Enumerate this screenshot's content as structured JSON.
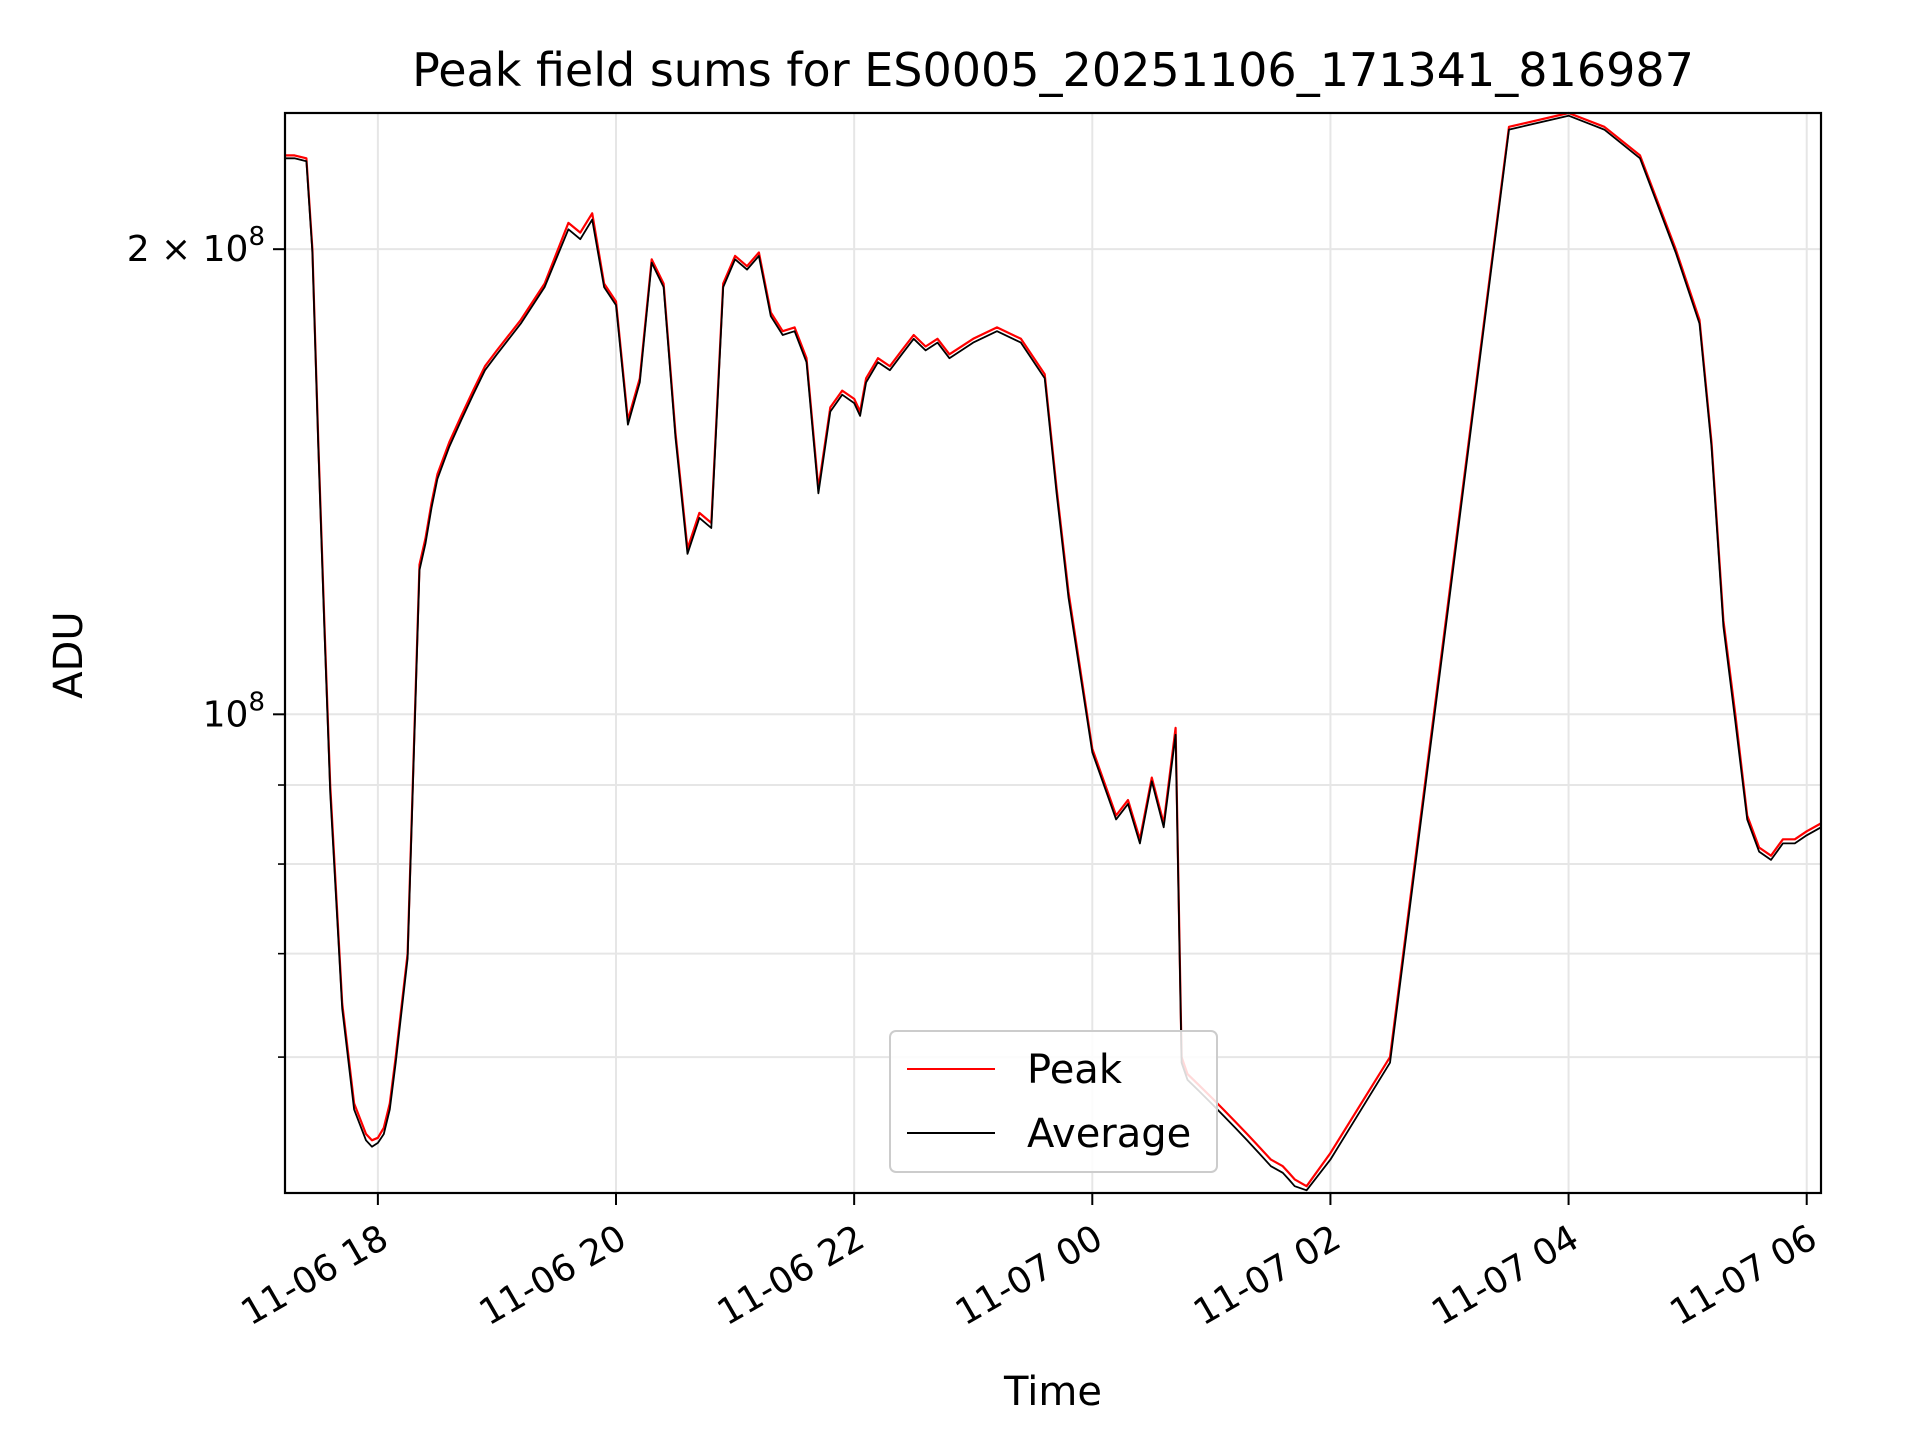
{
  "chart_data": {
    "type": "line",
    "title": "Peak field sums for ES0005_20251106_171341_816987",
    "xlabel": "Time",
    "ylabel": "ADU",
    "yscale": "log",
    "grid": true,
    "ylim": [
      49000000,
      245000000
    ],
    "xlim_hours": [
      17.22,
      30.12
    ],
    "x_unit": "hours since 2025-11-06 00:00",
    "x_ticks": [
      {
        "value": 18,
        "label": "11-06 18"
      },
      {
        "value": 20,
        "label": "11-06 20"
      },
      {
        "value": 22,
        "label": "11-06 22"
      },
      {
        "value": 24,
        "label": "11-07 00"
      },
      {
        "value": 26,
        "label": "11-07 02"
      },
      {
        "value": 28,
        "label": "11-07 04"
      },
      {
        "value": 30,
        "label": "11-07 06"
      }
    ],
    "y_major_ticks": [
      {
        "value": 100000000,
        "mantissa": "",
        "exponent": "8"
      },
      {
        "value": 200000000,
        "mantissa": "2 × ",
        "exponent": "8"
      }
    ],
    "y_minor_ticks": [
      60000000,
      70000000,
      80000000,
      90000000
    ],
    "legend_location": "bottom-center",
    "series": [
      {
        "name": "Peak",
        "color": "#ff0000",
        "x": [
          17.22,
          17.3,
          17.4,
          17.45,
          17.5,
          17.55,
          17.6,
          17.7,
          17.8,
          17.9,
          17.95,
          18.0,
          18.05,
          18.1,
          18.15,
          18.25,
          18.35,
          18.4,
          18.45,
          18.5,
          18.6,
          18.7,
          18.8,
          18.9,
          19.0,
          19.2,
          19.4,
          19.6,
          19.7,
          19.8,
          19.9,
          20.0,
          20.1,
          20.2,
          20.3,
          20.4,
          20.5,
          20.6,
          20.7,
          20.8,
          20.9,
          21.0,
          21.1,
          21.2,
          21.3,
          21.4,
          21.5,
          21.6,
          21.7,
          21.8,
          21.9,
          22.0,
          22.05,
          22.1,
          22.2,
          22.3,
          22.4,
          22.5,
          22.6,
          22.7,
          22.8,
          23.0,
          23.2,
          23.4,
          23.6,
          23.7,
          23.8,
          24.0,
          24.2,
          24.3,
          24.4,
          24.5,
          24.6,
          24.7,
          24.75,
          24.8,
          24.9,
          25.0,
          25.1,
          25.2,
          25.3,
          25.4,
          25.5,
          25.6,
          25.65,
          25.7,
          25.8,
          26.0,
          26.5,
          27.0,
          27.5,
          28.0,
          28.3,
          28.6,
          28.9,
          29.1,
          29.2,
          29.3,
          29.4,
          29.5,
          29.6,
          29.7,
          29.8,
          29.9,
          30.0,
          30.12
        ],
        "values": [
          230000000,
          230000000,
          229000000,
          200000000,
          150000000,
          115000000,
          90000000,
          65000000,
          56000000,
          53500000,
          53000000,
          53200000,
          54000000,
          56000000,
          60000000,
          70000000,
          125000000,
          130000000,
          137000000,
          143000000,
          150000000,
          156000000,
          162000000,
          168000000,
          172000000,
          180000000,
          190000000,
          208000000,
          205000000,
          211000000,
          190000000,
          185000000,
          155000000,
          165000000,
          197000000,
          190000000,
          152000000,
          128000000,
          135000000,
          133000000,
          190000000,
          198000000,
          195000000,
          199000000,
          182000000,
          177000000,
          178000000,
          170000000,
          140000000,
          158000000,
          162000000,
          160000000,
          157000000,
          165000000,
          170000000,
          168000000,
          172000000,
          176000000,
          173000000,
          175000000,
          171000000,
          175000000,
          178000000,
          175000000,
          166000000,
          140000000,
          120000000,
          95000000,
          86000000,
          88000000,
          83000000,
          91000000,
          85000000,
          98000000,
          60000000,
          58500000,
          57500000,
          56500000,
          55500000,
          54500000,
          53500000,
          52500000,
          51500000,
          51000000,
          50500000,
          50000000,
          49500000,
          52000000,
          60000000,
          120000000,
          240000000,
          245000000,
          240000000,
          230000000,
          200000000,
          180000000,
          150000000,
          115000000,
          100000000,
          86000000,
          82000000,
          81000000,
          83000000,
          83000000,
          84000000,
          85000000
        ]
      },
      {
        "name": "Average",
        "color": "#000000",
        "x": [
          17.22,
          17.3,
          17.4,
          17.45,
          17.5,
          17.55,
          17.6,
          17.7,
          17.8,
          17.9,
          17.95,
          18.0,
          18.05,
          18.1,
          18.15,
          18.25,
          18.35,
          18.4,
          18.45,
          18.5,
          18.6,
          18.7,
          18.8,
          18.9,
          19.0,
          19.2,
          19.4,
          19.6,
          19.7,
          19.8,
          19.9,
          20.0,
          20.1,
          20.2,
          20.3,
          20.4,
          20.5,
          20.6,
          20.7,
          20.8,
          20.9,
          21.0,
          21.1,
          21.2,
          21.3,
          21.4,
          21.5,
          21.6,
          21.7,
          21.8,
          21.9,
          22.0,
          22.05,
          22.1,
          22.2,
          22.3,
          22.4,
          22.5,
          22.6,
          22.7,
          22.8,
          23.0,
          23.2,
          23.4,
          23.6,
          23.7,
          23.8,
          24.0,
          24.2,
          24.3,
          24.4,
          24.5,
          24.6,
          24.7,
          24.75,
          24.8,
          24.9,
          25.0,
          25.1,
          25.2,
          25.3,
          25.4,
          25.5,
          25.6,
          25.65,
          25.7,
          25.8,
          26.0,
          26.5,
          27.0,
          27.5,
          28.0,
          28.3,
          28.6,
          28.9,
          29.1,
          29.2,
          29.3,
          29.4,
          29.5,
          29.6,
          29.7,
          29.8,
          29.9,
          30.0,
          30.12
        ],
        "values": [
          229000000,
          229000000,
          228000000,
          199000000,
          149000000,
          114000000,
          89000000,
          64500000,
          55500000,
          53000000,
          52500000,
          52800000,
          53500000,
          55500000,
          59500000,
          69500000,
          124000000,
          129000000,
          136000000,
          142000000,
          149000000,
          155000000,
          161000000,
          167000000,
          171000000,
          179000000,
          189000000,
          206000000,
          203000000,
          209000000,
          189000000,
          184000000,
          154000000,
          164000000,
          196000000,
          189000000,
          151000000,
          127000000,
          134000000,
          132000000,
          189000000,
          197000000,
          194000000,
          198000000,
          181000000,
          176000000,
          177000000,
          169000000,
          139000000,
          157000000,
          161000000,
          159000000,
          156000000,
          164000000,
          169000000,
          167000000,
          171000000,
          175000000,
          172000000,
          174000000,
          170000000,
          174000000,
          177000000,
          174000000,
          165000000,
          139000000,
          119000000,
          94500000,
          85500000,
          87500000,
          82500000,
          90500000,
          84500000,
          97000000,
          59500000,
          58000000,
          57000000,
          56000000,
          55000000,
          54000000,
          53000000,
          52000000,
          51000000,
          50500000,
          50000000,
          49500000,
          49200000,
          51500000,
          59500000,
          119000000,
          239000000,
          244000000,
          239000000,
          229000000,
          199000000,
          179000000,
          149000000,
          114000000,
          99000000,
          85500000,
          81500000,
          80500000,
          82500000,
          82500000,
          83500000,
          84500000
        ]
      }
    ]
  }
}
